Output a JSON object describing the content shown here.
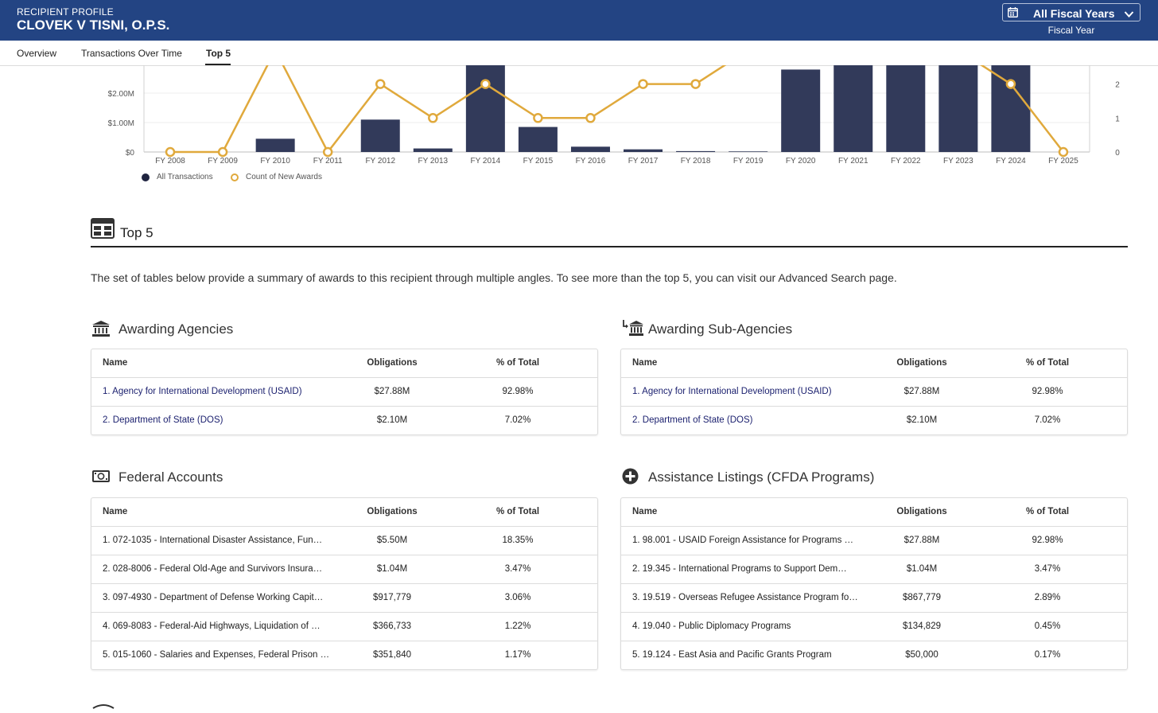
{
  "header": {
    "subtitle": "RECIPIENT PROFILE",
    "recipient_name": "CLOVEK V TISNI, O.P.S.",
    "fiscal_year_select": "All Fiscal Years",
    "fiscal_year_caption": "Fiscal Year"
  },
  "tabs": [
    {
      "label": "Overview"
    },
    {
      "label": "Transactions Over Time"
    },
    {
      "label": "Top 5",
      "active": true
    }
  ],
  "chart_data": {
    "type": "bar",
    "categories": [
      "FY 2008",
      "FY 2009",
      "FY 2010",
      "FY 2011",
      "FY 2012",
      "FY 2013",
      "FY 2014",
      "FY 2015",
      "FY 2016",
      "FY 2017",
      "FY 2018",
      "FY 2019",
      "FY 2020",
      "FY 2021",
      "FY 2022",
      "FY 2023",
      "FY 2024",
      "FY 2025"
    ],
    "series": [
      {
        "name": "All Transactions",
        "kind": "bar",
        "axis": "left",
        "color": "#323a5a",
        "values": [
          0,
          0,
          0.45,
          0,
          1.1,
          0.12,
          3.6,
          0.85,
          0.18,
          0.09,
          0.03,
          0.02,
          2.8,
          3.2,
          3.3,
          3.1,
          3.2,
          0
        ]
      },
      {
        "name": "Count of New Awards",
        "kind": "line",
        "axis": "right",
        "color": "#e0a93c",
        "values": [
          0,
          0,
          3,
          0,
          2,
          1,
          2,
          1,
          1,
          2,
          2,
          3,
          3,
          3,
          3,
          3,
          2,
          0
        ]
      }
    ],
    "y_left_ticks": [
      "$0",
      "$1.00M",
      "$2.00M"
    ],
    "y_right_ticks": [
      "0",
      "1",
      "2"
    ],
    "grid": true,
    "legend_placement": "bottom-left"
  },
  "top5": {
    "title": "Top 5",
    "description": "The set of tables below provide a summary of awards to this recipient through multiple angles. To see more than the top 5, you can visit our Advanced Search page."
  },
  "columns": {
    "name": "Name",
    "obligations": "Obligations",
    "percent": "% of Total"
  },
  "panels": {
    "awarding_agencies": {
      "title": "Awarding Agencies",
      "icon": "bank-icon",
      "rows": [
        {
          "name": "1. Agency for International Development (USAID)",
          "obligations": "$27.88M",
          "percent": "92.98%"
        },
        {
          "name": "2. Department of State (DOS)",
          "obligations": "$2.10M",
          "percent": "7.02%"
        }
      ]
    },
    "awarding_subagencies": {
      "title": "Awarding Sub-Agencies",
      "icon": "sub-bank-icon",
      "rows": [
        {
          "name": "1. Agency for International Development (USAID)",
          "obligations": "$27.88M",
          "percent": "92.98%"
        },
        {
          "name": "2. Department of State (DOS)",
          "obligations": "$2.10M",
          "percent": "7.02%"
        }
      ]
    },
    "federal_accounts": {
      "title": "Federal Accounts",
      "icon": "money-icon",
      "rows": [
        {
          "name": "1. 072-1035 - International Disaster Assistance, Fun…",
          "obligations": "$5.50M",
          "percent": "18.35%"
        },
        {
          "name": "2. 028-8006 - Federal Old-Age and Survivors Insura…",
          "obligations": "$1.04M",
          "percent": "3.47%"
        },
        {
          "name": "3. 097-4930 - Department of Defense Working Capit…",
          "obligations": "$917,779",
          "percent": "3.06%"
        },
        {
          "name": "4. 069-8083 - Federal-Aid Highways, Liquidation of …",
          "obligations": "$366,733",
          "percent": "1.22%"
        },
        {
          "name": "5. 015-1060 - Salaries and Expenses, Federal Prison …",
          "obligations": "$351,840",
          "percent": "1.17%"
        }
      ]
    },
    "assistance_listings": {
      "title": "Assistance Listings (CFDA Programs)",
      "icon": "plus-circle-icon",
      "rows": [
        {
          "name": "1. 98.001 - USAID Foreign Assistance for Programs …",
          "obligations": "$27.88M",
          "percent": "92.98%"
        },
        {
          "name": "2. 19.345 - International Programs to Support Dem…",
          "obligations": "$1.04M",
          "percent": "3.47%"
        },
        {
          "name": "3. 19.519 - Overseas Refugee Assistance Program fo…",
          "obligations": "$867,779",
          "percent": "2.89%"
        },
        {
          "name": "4. 19.040 - Public Diplomacy Programs",
          "obligations": "$134,829",
          "percent": "0.45%"
        },
        {
          "name": "5. 19.124 - East Asia and Pacific Grants Program",
          "obligations": "$50,000",
          "percent": "0.17%"
        }
      ]
    }
  }
}
